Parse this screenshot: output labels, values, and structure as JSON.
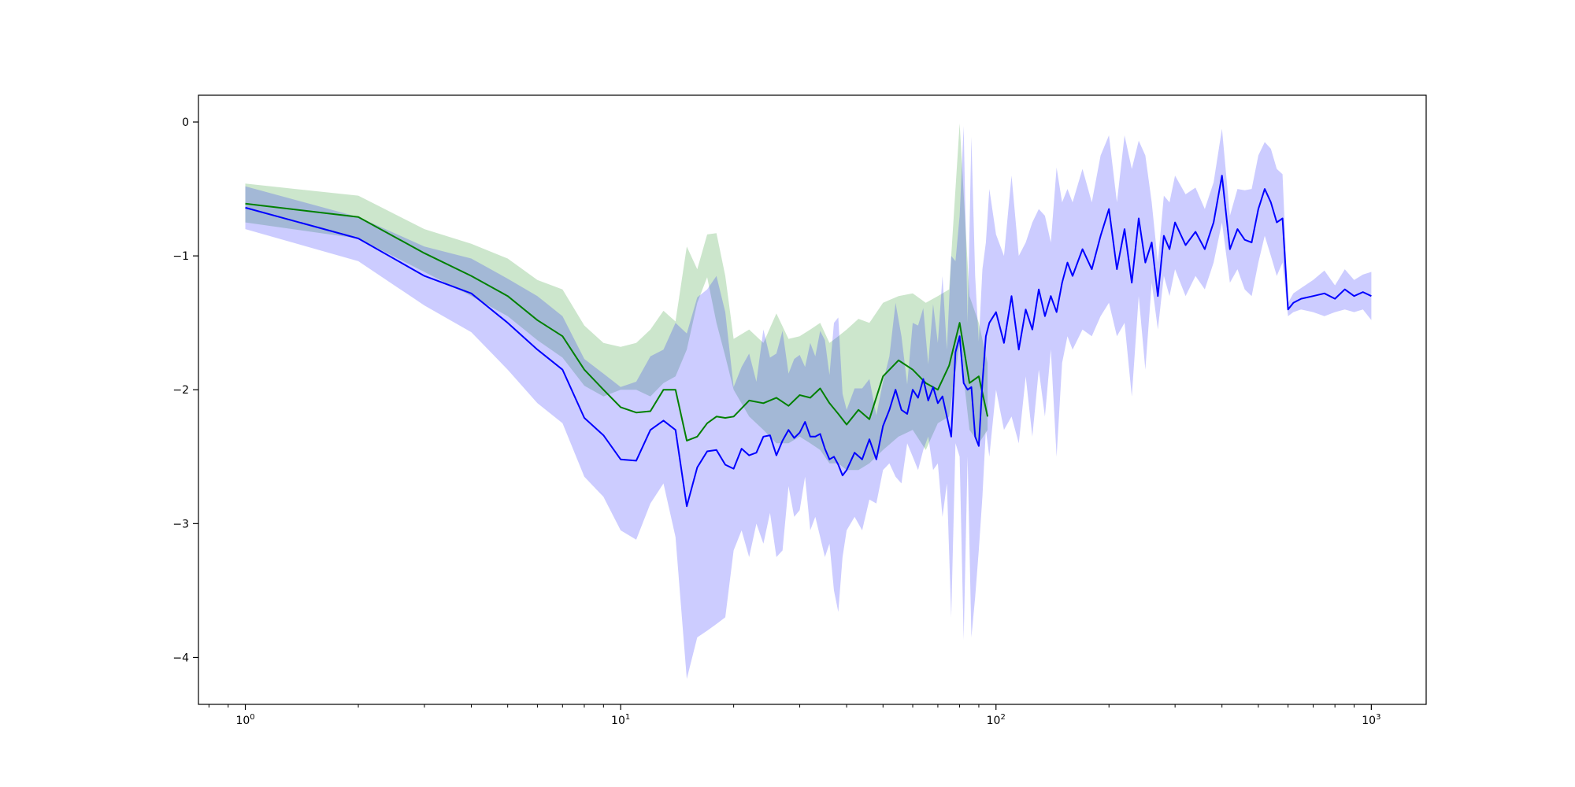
{
  "chart_data": {
    "type": "line",
    "title": "",
    "xlabel": "",
    "ylabel": "",
    "xscale": "log",
    "xlim": [
      0.75,
      1400
    ],
    "ylim": [
      -4.35,
      0.2
    ],
    "grid": false,
    "legend": "none",
    "x_ticks": [
      {
        "value": 1,
        "base": "10",
        "exp": "0"
      },
      {
        "value": 10,
        "base": "10",
        "exp": "1"
      },
      {
        "value": 100,
        "base": "10",
        "exp": "2"
      },
      {
        "value": 1000,
        "base": "10",
        "exp": "3"
      }
    ],
    "y_ticks": [
      {
        "value": 0,
        "label": "0"
      },
      {
        "value": -1,
        "label": "−1"
      },
      {
        "value": -2,
        "label": "−2"
      },
      {
        "value": -3,
        "label": "−3"
      },
      {
        "value": -4,
        "label": "−4"
      }
    ],
    "series": [
      {
        "color": "#008000",
        "band_color": "#008000",
        "band_opacity": 0.2,
        "x": [
          1,
          2,
          3,
          4,
          5,
          6,
          7,
          8,
          9,
          10,
          11,
          12,
          13,
          14,
          15,
          16,
          17,
          18,
          19,
          20,
          22,
          24,
          26,
          28,
          30,
          32,
          34,
          36,
          38,
          40,
          43,
          46,
          50,
          55,
          60,
          65,
          70,
          75,
          80,
          85,
          90,
          95
        ],
        "y": [
          -0.61,
          -0.71,
          -0.98,
          -1.15,
          -1.3,
          -1.48,
          -1.6,
          -1.85,
          -2.0,
          -2.13,
          -2.17,
          -2.16,
          -2.0,
          -2.0,
          -2.38,
          -2.35,
          -2.25,
          -2.2,
          -2.21,
          -2.2,
          -2.08,
          -2.1,
          -2.06,
          -2.12,
          -2.04,
          -2.06,
          -1.99,
          -2.1,
          -2.18,
          -2.26,
          -2.15,
          -2.22,
          -1.9,
          -1.78,
          -1.85,
          -1.95,
          -2.0,
          -1.82,
          -1.5,
          -1.95,
          -1.9,
          -2.2
        ],
        "lower": [
          -0.75,
          -0.87,
          -1.12,
          -1.3,
          -1.45,
          -1.63,
          -1.76,
          -1.97,
          -2.05,
          -2.0,
          -2.0,
          -2.05,
          -1.95,
          -1.9,
          -1.7,
          -1.35,
          -1.16,
          -1.5,
          -1.75,
          -2.0,
          -2.2,
          -2.3,
          -2.4,
          -2.4,
          -2.35,
          -2.4,
          -2.45,
          -2.55,
          -2.55,
          -2.6,
          -2.6,
          -2.55,
          -2.45,
          -2.35,
          -2.3,
          -2.45,
          -2.25,
          -2.2,
          -1.65,
          -2.3,
          -2.4,
          -2.3
        ],
        "upper": [
          -0.46,
          -0.55,
          -0.8,
          -0.91,
          -1.02,
          -1.18,
          -1.25,
          -1.52,
          -1.65,
          -1.68,
          -1.65,
          -1.55,
          -1.41,
          -1.49,
          -0.93,
          -1.1,
          -0.84,
          -0.83,
          -1.15,
          -1.62,
          -1.55,
          -1.65,
          -1.43,
          -1.62,
          -1.6,
          -1.55,
          -1.5,
          -1.65,
          -1.6,
          -1.55,
          -1.47,
          -1.5,
          -1.35,
          -1.3,
          -1.28,
          -1.35,
          -1.3,
          -1.25,
          -0.01,
          -1.3,
          -1.5,
          -1.8
        ]
      },
      {
        "color": "#0000ff",
        "band_color": "#0000ff",
        "band_opacity": 0.2,
        "x": [
          1,
          2,
          3,
          4,
          5,
          6,
          7,
          8,
          9,
          10,
          11,
          12,
          13,
          14,
          15,
          16,
          17,
          18,
          19,
          20,
          21,
          22,
          23,
          24,
          25,
          26,
          27,
          28,
          29,
          30,
          31,
          32,
          33,
          34,
          35,
          36,
          37,
          38,
          39,
          40,
          42,
          44,
          46,
          48,
          50,
          52,
          54,
          56,
          58,
          60,
          62,
          64,
          66,
          68,
          70,
          72,
          74,
          76,
          78,
          80,
          82,
          84,
          86,
          88,
          90,
          92,
          94,
          96,
          100,
          105,
          110,
          115,
          120,
          125,
          130,
          135,
          140,
          145,
          150,
          155,
          160,
          170,
          180,
          190,
          200,
          210,
          220,
          230,
          240,
          250,
          260,
          270,
          280,
          290,
          300,
          320,
          340,
          360,
          380,
          400,
          420,
          440,
          460,
          480,
          500,
          520,
          540,
          560,
          580,
          600,
          620,
          650,
          700,
          750,
          800,
          850,
          900,
          950,
          1000
        ],
        "y": [
          -0.64,
          -0.87,
          -1.15,
          -1.28,
          -1.5,
          -1.7,
          -1.85,
          -2.21,
          -2.34,
          -2.52,
          -2.53,
          -2.3,
          -2.23,
          -2.3,
          -2.87,
          -2.58,
          -2.46,
          -2.45,
          -2.56,
          -2.59,
          -2.44,
          -2.49,
          -2.47,
          -2.35,
          -2.34,
          -2.49,
          -2.38,
          -2.3,
          -2.36,
          -2.32,
          -2.24,
          -2.35,
          -2.35,
          -2.33,
          -2.44,
          -2.52,
          -2.5,
          -2.56,
          -2.64,
          -2.6,
          -2.47,
          -2.52,
          -2.37,
          -2.52,
          -2.27,
          -2.15,
          -2.0,
          -2.15,
          -2.18,
          -2.0,
          -2.06,
          -1.92,
          -2.08,
          -1.98,
          -2.1,
          -2.05,
          -2.2,
          -2.35,
          -1.72,
          -1.6,
          -1.95,
          -2.0,
          -1.98,
          -2.35,
          -2.42,
          -1.95,
          -1.6,
          -1.5,
          -1.42,
          -1.65,
          -1.3,
          -1.7,
          -1.4,
          -1.55,
          -1.25,
          -1.45,
          -1.3,
          -1.42,
          -1.2,
          -1.05,
          -1.15,
          -0.95,
          -1.1,
          -0.85,
          -0.65,
          -1.1,
          -0.8,
          -1.2,
          -0.72,
          -1.05,
          -0.9,
          -1.3,
          -0.85,
          -0.95,
          -0.75,
          -0.92,
          -0.82,
          -0.95,
          -0.75,
          -0.4,
          -0.95,
          -0.8,
          -0.88,
          -0.9,
          -0.65,
          -0.5,
          -0.6,
          -0.75,
          -0.72,
          -1.4,
          -1.35,
          -1.32,
          -1.3,
          -1.28,
          -1.32,
          -1.25,
          -1.3,
          -1.27,
          -1.3
        ],
        "lower": [
          -0.8,
          -1.04,
          -1.37,
          -1.57,
          -1.85,
          -2.1,
          -2.25,
          -2.65,
          -2.8,
          -3.05,
          -3.12,
          -2.85,
          -2.7,
          -3.1,
          -4.16,
          -3.85,
          -3.8,
          -3.75,
          -3.7,
          -3.2,
          -3.05,
          -3.25,
          -3.0,
          -3.15,
          -2.92,
          -3.25,
          -3.2,
          -2.72,
          -2.95,
          -2.9,
          -2.65,
          -3.05,
          -2.95,
          -3.1,
          -3.25,
          -3.15,
          -3.5,
          -3.66,
          -3.25,
          -3.05,
          -2.95,
          -3.05,
          -2.82,
          -2.85,
          -2.6,
          -2.55,
          -2.65,
          -2.7,
          -2.4,
          -2.5,
          -2.6,
          -2.45,
          -2.35,
          -2.6,
          -2.55,
          -2.95,
          -2.7,
          -3.7,
          -2.4,
          -2.5,
          -3.87,
          -2.5,
          -3.85,
          -3.55,
          -3.2,
          -2.8,
          -2.3,
          -2.5,
          -2.0,
          -2.3,
          -2.2,
          -2.4,
          -1.9,
          -2.35,
          -1.85,
          -2.2,
          -1.7,
          -2.5,
          -1.8,
          -1.6,
          -1.7,
          -1.55,
          -1.6,
          -1.45,
          -1.35,
          -1.6,
          -1.5,
          -2.05,
          -1.3,
          -1.85,
          -1.2,
          -1.55,
          -1.15,
          -1.3,
          -1.1,
          -1.3,
          -1.15,
          -1.25,
          -1.05,
          -0.75,
          -1.2,
          -1.1,
          -1.25,
          -1.3,
          -1.05,
          -0.85,
          -1.0,
          -1.15,
          -1.05,
          -1.45,
          -1.42,
          -1.4,
          -1.42,
          -1.45,
          -1.42,
          -1.4,
          -1.42,
          -1.4,
          -1.48
        ],
        "upper": [
          -0.48,
          -0.71,
          -0.93,
          -1.02,
          -1.17,
          -1.3,
          -1.45,
          -1.77,
          -1.88,
          -1.98,
          -1.94,
          -1.75,
          -1.7,
          -1.5,
          -1.58,
          -1.31,
          -1.25,
          -1.15,
          -1.42,
          -1.98,
          -1.83,
          -1.73,
          -1.94,
          -1.55,
          -1.76,
          -1.73,
          -1.56,
          -1.88,
          -1.77,
          -1.74,
          -1.83,
          -1.65,
          -1.75,
          -1.56,
          -1.63,
          -1.89,
          -1.5,
          -1.46,
          -2.03,
          -2.15,
          -1.99,
          -1.99,
          -1.92,
          -2.19,
          -1.94,
          -1.75,
          -1.35,
          -1.6,
          -1.96,
          -1.5,
          -1.52,
          -1.39,
          -1.81,
          -1.36,
          -1.65,
          -1.15,
          -1.7,
          -1.0,
          -1.04,
          -0.7,
          -0.03,
          -1.5,
          -0.11,
          -1.15,
          -1.64,
          -1.1,
          -0.9,
          -0.5,
          -0.84,
          -1.0,
          -0.4,
          -1.0,
          -0.9,
          -0.75,
          -0.65,
          -0.7,
          -0.9,
          -0.34,
          -0.6,
          -0.5,
          -0.6,
          -0.35,
          -0.6,
          -0.25,
          -0.1,
          -0.6,
          -0.1,
          -0.35,
          -0.14,
          -0.25,
          -0.6,
          -1.05,
          -0.55,
          -0.6,
          -0.4,
          -0.54,
          -0.49,
          -0.65,
          -0.45,
          -0.05,
          -0.7,
          -0.5,
          -0.51,
          -0.5,
          -0.25,
          -0.15,
          -0.2,
          -0.35,
          -0.39,
          -1.35,
          -1.28,
          -1.24,
          -1.18,
          -1.11,
          -1.22,
          -1.1,
          -1.18,
          -1.14,
          -1.12
        ]
      }
    ]
  }
}
